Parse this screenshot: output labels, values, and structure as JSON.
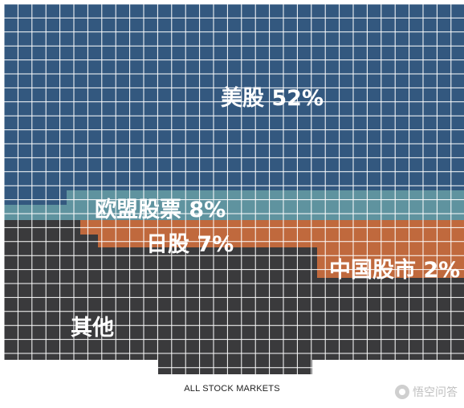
{
  "chart_data": {
    "type": "waffle",
    "title": "",
    "caption": "ALL STOCK MARKETS",
    "segments": [
      {
        "label": "美股 52%",
        "name": "美股",
        "value": 52,
        "color": "#33587f"
      },
      {
        "label": "欧盟股票 8%",
        "name": "欧盟股票",
        "value": 8,
        "color": "#5f939f"
      },
      {
        "label": "日股 7%",
        "name": "日股",
        "value": 7,
        "color": "#c0693d"
      },
      {
        "label": "中国股市 2%",
        "name": "中国股市",
        "value": 2,
        "color": "#c0693d"
      },
      {
        "label": "其他",
        "name": "其他",
        "value": null,
        "color": "#3a3a3c"
      }
    ],
    "grid": true,
    "grid_color": "#ffffff"
  },
  "watermark": {
    "text": "悟空问答",
    "icon": "wukong-logo-icon"
  }
}
